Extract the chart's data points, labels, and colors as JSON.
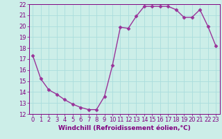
{
  "x": [
    0,
    1,
    2,
    3,
    4,
    5,
    6,
    7,
    8,
    9,
    10,
    11,
    12,
    13,
    14,
    15,
    16,
    17,
    18,
    19,
    20,
    21,
    22,
    23
  ],
  "y": [
    17.3,
    15.2,
    14.2,
    13.8,
    13.3,
    12.9,
    12.6,
    12.4,
    12.4,
    13.6,
    16.4,
    19.9,
    19.8,
    20.9,
    21.8,
    21.8,
    21.8,
    21.8,
    21.5,
    20.8,
    20.8,
    21.5,
    20.0,
    18.2
  ],
  "line_color": "#993399",
  "marker": "D",
  "marker_size": 2.5,
  "linewidth": 1.0,
  "xlabel": "Windchill (Refroidissement éolien,°C)",
  "xlabel_fontsize": 6.5,
  "ylim": [
    12,
    22
  ],
  "xlim": [
    -0.5,
    23.5
  ],
  "yticks": [
    12,
    13,
    14,
    15,
    16,
    17,
    18,
    19,
    20,
    21,
    22
  ],
  "xticks": [
    0,
    1,
    2,
    3,
    4,
    5,
    6,
    7,
    8,
    9,
    10,
    11,
    12,
    13,
    14,
    15,
    16,
    17,
    18,
    19,
    20,
    21,
    22,
    23
  ],
  "bg_color": "#cceee8",
  "grid_color": "#aadddd",
  "tick_color": "#800080",
  "label_color": "#800080",
  "tick_fontsize": 6.0
}
